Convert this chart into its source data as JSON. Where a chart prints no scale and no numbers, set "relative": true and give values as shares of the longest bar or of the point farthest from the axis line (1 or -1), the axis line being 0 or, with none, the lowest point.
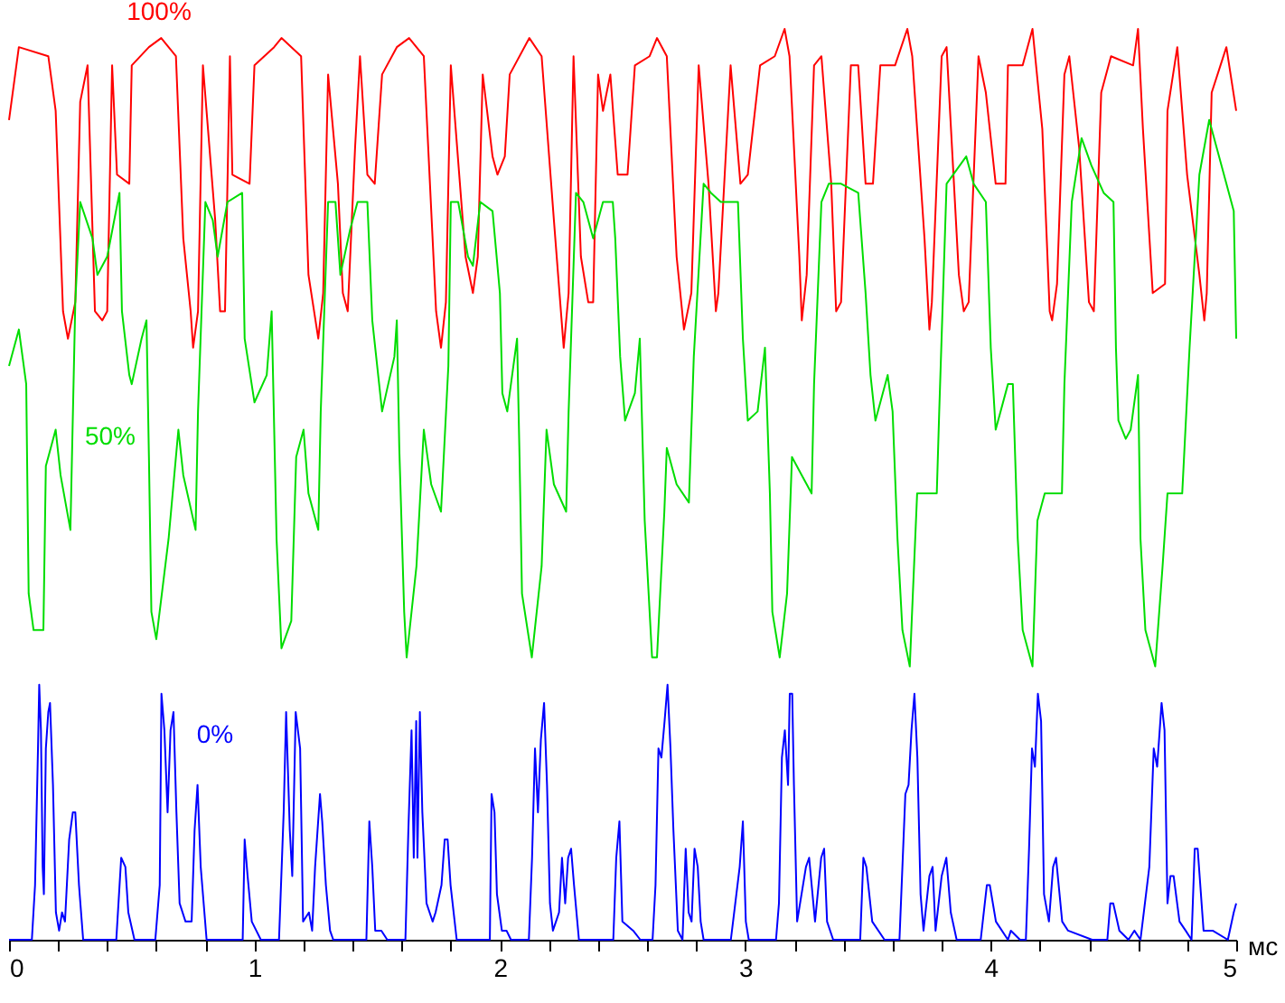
{
  "chart_data": {
    "type": "line",
    "relative": true,
    "xlabel": "мс",
    "xlim": [
      0,
      5
    ],
    "xticks": [
      0,
      {
        "value": 0.2,
        "label": null
      },
      {
        "value": 0.4,
        "label": null
      },
      {
        "value": 0.6,
        "label": null
      },
      {
        "value": 0.8,
        "label": null
      },
      1,
      {
        "value": 1.2,
        "label": null
      },
      {
        "value": 1.4,
        "label": null
      },
      {
        "value": 1.6,
        "label": null
      },
      {
        "value": 1.8,
        "label": null
      },
      2,
      {
        "value": 2.2,
        "label": null
      },
      {
        "value": 2.4,
        "label": null
      },
      {
        "value": 2.6,
        "label": null
      },
      {
        "value": 2.8,
        "label": null
      },
      3,
      {
        "value": 3.2,
        "label": null
      },
      {
        "value": 3.4,
        "label": null
      },
      {
        "value": 3.6,
        "label": null
      },
      {
        "value": 3.8,
        "label": null
      },
      4,
      {
        "value": 4.2,
        "label": null
      },
      {
        "value": 4.4,
        "label": null
      },
      {
        "value": 4.6,
        "label": null
      },
      {
        "value": 4.8,
        "label": null
      },
      5
    ],
    "series": [
      {
        "name": "100%",
        "color": "#ff0000",
        "x": [
          0.0,
          0.04,
          0.16,
          0.19,
          0.22,
          0.24,
          0.27,
          0.29,
          0.32,
          0.35,
          0.38,
          0.4,
          0.42,
          0.44,
          0.49,
          0.5,
          0.57,
          0.62,
          0.68,
          0.71,
          0.74,
          0.75,
          0.77,
          0.79,
          0.84,
          0.86,
          0.88,
          0.9,
          0.91,
          0.98,
          1.0,
          1.08,
          1.11,
          1.19,
          1.22,
          1.26,
          1.28,
          1.3,
          1.34,
          1.36,
          1.38,
          1.41,
          1.43,
          1.46,
          1.49,
          1.52,
          1.58,
          1.63,
          1.69,
          1.74,
          1.76,
          1.78,
          1.8,
          1.86,
          1.89,
          1.91,
          1.93,
          1.97,
          1.99,
          2.02,
          2.04,
          2.12,
          2.17,
          2.22,
          2.26,
          2.28,
          2.3,
          2.33,
          2.36,
          2.38,
          2.4,
          2.42,
          2.45,
          2.48,
          2.52,
          2.55,
          2.61,
          2.64,
          2.68,
          2.72,
          2.75,
          2.78,
          2.81,
          2.85,
          2.88,
          2.89,
          2.94,
          2.98,
          3.01,
          3.06,
          3.12,
          3.16,
          3.18,
          3.22,
          3.23,
          3.25,
          3.28,
          3.31,
          3.35,
          3.37,
          3.39,
          3.43,
          3.46,
          3.49,
          3.52,
          3.55,
          3.61,
          3.66,
          3.68,
          3.73,
          3.75,
          3.76,
          3.8,
          3.82,
          3.87,
          3.89,
          3.91,
          3.95,
          3.98,
          4.02,
          4.06,
          4.07,
          4.13,
          4.17,
          4.21,
          4.24,
          4.25,
          4.27,
          4.3,
          4.32,
          4.36,
          4.4,
          4.42,
          4.45,
          4.49,
          4.58,
          4.6,
          4.62,
          4.66,
          4.71,
          4.72,
          4.76,
          4.8,
          4.85,
          4.87,
          4.88,
          4.9,
          4.96,
          5.0
        ],
        "values": [
          0.9,
          0.98,
          0.97,
          0.91,
          0.69,
          0.66,
          0.7,
          0.92,
          0.96,
          0.69,
          0.68,
          0.69,
          0.96,
          0.84,
          0.83,
          0.96,
          0.98,
          0.99,
          0.97,
          0.77,
          0.69,
          0.65,
          0.69,
          0.96,
          0.79,
          0.69,
          0.69,
          0.97,
          0.84,
          0.83,
          0.96,
          0.98,
          0.99,
          0.97,
          0.73,
          0.66,
          0.71,
          0.95,
          0.83,
          0.71,
          0.69,
          0.87,
          0.97,
          0.84,
          0.83,
          0.95,
          0.98,
          0.99,
          0.97,
          0.69,
          0.65,
          0.7,
          0.96,
          0.75,
          0.71,
          0.75,
          0.95,
          0.86,
          0.84,
          0.86,
          0.95,
          0.99,
          0.97,
          0.79,
          0.65,
          0.71,
          0.97,
          0.75,
          0.7,
          0.7,
          0.95,
          0.91,
          0.95,
          0.84,
          0.84,
          0.96,
          0.97,
          0.99,
          0.97,
          0.75,
          0.67,
          0.71,
          0.96,
          0.83,
          0.69,
          0.71,
          0.96,
          0.83,
          0.84,
          0.96,
          0.97,
          1.0,
          0.97,
          0.75,
          0.68,
          0.73,
          0.96,
          0.97,
          0.83,
          0.69,
          0.7,
          0.96,
          0.96,
          0.83,
          0.83,
          0.96,
          0.96,
          1.0,
          0.97,
          0.77,
          0.67,
          0.7,
          0.97,
          0.98,
          0.73,
          0.69,
          0.7,
          0.97,
          0.93,
          0.83,
          0.83,
          0.96,
          0.96,
          1.0,
          0.89,
          0.69,
          0.68,
          0.72,
          0.95,
          0.97,
          0.87,
          0.7,
          0.69,
          0.93,
          0.97,
          0.96,
          1.0,
          0.89,
          0.71,
          0.72,
          0.91,
          0.98,
          0.84,
          0.73,
          0.68,
          0.71,
          0.93,
          0.98,
          0.91
        ]
      },
      {
        "name": "50%",
        "color": "#00dd00",
        "x": [
          0.0,
          0.04,
          0.07,
          0.08,
          0.1,
          0.14,
          0.15,
          0.19,
          0.21,
          0.25,
          0.27,
          0.29,
          0.34,
          0.36,
          0.4,
          0.45,
          0.46,
          0.49,
          0.5,
          0.54,
          0.56,
          0.57,
          0.58,
          0.6,
          0.65,
          0.69,
          0.71,
          0.76,
          0.77,
          0.8,
          0.83,
          0.85,
          0.89,
          0.95,
          0.96,
          1.0,
          1.05,
          1.07,
          1.09,
          1.11,
          1.15,
          1.17,
          1.2,
          1.22,
          1.26,
          1.27,
          1.3,
          1.33,
          1.35,
          1.39,
          1.42,
          1.46,
          1.48,
          1.52,
          1.57,
          1.58,
          1.59,
          1.61,
          1.62,
          1.66,
          1.69,
          1.72,
          1.76,
          1.79,
          1.8,
          1.83,
          1.87,
          1.89,
          1.92,
          1.97,
          2.0,
          2.01,
          2.03,
          2.07,
          2.08,
          2.09,
          2.13,
          2.17,
          2.19,
          2.22,
          2.27,
          2.28,
          2.31,
          2.34,
          2.38,
          2.42,
          2.46,
          2.47,
          2.49,
          2.51,
          2.55,
          2.57,
          2.59,
          2.62,
          2.64,
          2.67,
          2.68,
          2.72,
          2.77,
          2.79,
          2.83,
          2.86,
          2.9,
          2.97,
          2.99,
          3.01,
          3.05,
          3.08,
          3.1,
          3.11,
          3.14,
          3.17,
          3.19,
          3.23,
          3.27,
          3.28,
          3.31,
          3.34,
          3.39,
          3.46,
          3.49,
          3.51,
          3.53,
          3.58,
          3.6,
          3.62,
          3.64,
          3.67,
          3.7,
          3.73,
          3.78,
          3.79,
          3.82,
          3.9,
          3.93,
          3.98,
          4.0,
          4.02,
          4.07,
          4.09,
          4.11,
          4.13,
          4.17,
          4.19,
          4.22,
          4.29,
          4.3,
          4.33,
          4.37,
          4.41,
          4.46,
          4.5,
          4.51,
          4.52,
          4.55,
          4.57,
          4.6,
          4.61,
          4.63,
          4.67,
          4.7,
          4.72,
          4.78,
          4.81,
          4.85,
          4.89,
          4.92,
          4.96,
          4.99,
          5.0
        ],
        "values": [
          0.63,
          0.67,
          0.61,
          0.38,
          0.34,
          0.34,
          0.52,
          0.56,
          0.51,
          0.45,
          0.7,
          0.81,
          0.77,
          0.73,
          0.75,
          0.82,
          0.69,
          0.62,
          0.61,
          0.66,
          0.68,
          0.53,
          0.36,
          0.33,
          0.44,
          0.56,
          0.51,
          0.45,
          0.58,
          0.81,
          0.79,
          0.75,
          0.81,
          0.82,
          0.66,
          0.59,
          0.62,
          0.69,
          0.44,
          0.32,
          0.35,
          0.53,
          0.56,
          0.49,
          0.45,
          0.58,
          0.81,
          0.81,
          0.73,
          0.78,
          0.81,
          0.81,
          0.68,
          0.58,
          0.64,
          0.68,
          0.54,
          0.36,
          0.31,
          0.41,
          0.56,
          0.5,
          0.47,
          0.63,
          0.81,
          0.81,
          0.75,
          0.74,
          0.81,
          0.8,
          0.71,
          0.6,
          0.58,
          0.66,
          0.53,
          0.38,
          0.31,
          0.41,
          0.56,
          0.5,
          0.47,
          0.58,
          0.82,
          0.81,
          0.77,
          0.81,
          0.81,
          0.77,
          0.64,
          0.57,
          0.6,
          0.66,
          0.46,
          0.31,
          0.31,
          0.47,
          0.54,
          0.5,
          0.48,
          0.64,
          0.83,
          0.82,
          0.81,
          0.81,
          0.66,
          0.57,
          0.58,
          0.65,
          0.49,
          0.36,
          0.31,
          0.38,
          0.53,
          0.51,
          0.49,
          0.61,
          0.81,
          0.83,
          0.83,
          0.82,
          0.71,
          0.62,
          0.57,
          0.62,
          0.58,
          0.44,
          0.34,
          0.3,
          0.49,
          0.49,
          0.49,
          0.58,
          0.83,
          0.86,
          0.83,
          0.81,
          0.65,
          0.56,
          0.61,
          0.61,
          0.44,
          0.34,
          0.3,
          0.46,
          0.49,
          0.49,
          0.61,
          0.81,
          0.88,
          0.85,
          0.82,
          0.81,
          0.65,
          0.57,
          0.55,
          0.56,
          0.62,
          0.44,
          0.34,
          0.3,
          0.41,
          0.49,
          0.49,
          0.65,
          0.84,
          0.9,
          0.87,
          0.83,
          0.8,
          0.66
        ]
      },
      {
        "name": "0%",
        "color": "#0000ff",
        "x": [
          0.0,
          0.093,
          0.106,
          0.118,
          0.123,
          0.13,
          0.137,
          0.142,
          0.15,
          0.16,
          0.167,
          0.179,
          0.191,
          0.204,
          0.216,
          0.228,
          0.245,
          0.26,
          0.27,
          0.285,
          0.302,
          0.437,
          0.457,
          0.474,
          0.486,
          0.511,
          0.596,
          0.614,
          0.621,
          0.633,
          0.646,
          0.658,
          0.67,
          0.682,
          0.695,
          0.719,
          0.744,
          0.756,
          0.768,
          0.781,
          0.805,
          0.952,
          0.96,
          0.972,
          0.989,
          1.026,
          1.1,
          1.119,
          1.129,
          1.144,
          1.154,
          1.168,
          1.186,
          1.198,
          1.222,
          1.235,
          1.247,
          1.267,
          1.276,
          1.291,
          1.308,
          1.321,
          1.456,
          1.468,
          1.48,
          1.492,
          1.517,
          1.541,
          1.615,
          1.627,
          1.64,
          1.649,
          1.659,
          1.664,
          1.674,
          1.684,
          1.701,
          1.726,
          1.738,
          1.762,
          1.775,
          1.787,
          1.799,
          1.824,
          1.959,
          1.966,
          1.978,
          1.988,
          2.008,
          2.027,
          2.045,
          2.118,
          2.131,
          2.143,
          2.155,
          2.167,
          2.18,
          2.192,
          2.204,
          2.216,
          2.241,
          2.253,
          2.266,
          2.278,
          2.29,
          2.302,
          2.322,
          2.462,
          2.474,
          2.487,
          2.499,
          2.543,
          2.572,
          2.622,
          2.634,
          2.646,
          2.658,
          2.671,
          2.683,
          2.695,
          2.707,
          2.725,
          2.744,
          2.757,
          2.769,
          2.781,
          2.793,
          2.806,
          2.818,
          2.83,
          2.941,
          2.977,
          2.99,
          3.002,
          3.014,
          3.063,
          3.125,
          3.137,
          3.149,
          3.161,
          3.174,
          3.181,
          3.191,
          3.198,
          3.211,
          3.247,
          3.26,
          3.284,
          3.309,
          3.321,
          3.333,
          3.358,
          3.468,
          3.481,
          3.493,
          3.517,
          3.567,
          3.628,
          3.652,
          3.665,
          3.677,
          3.689,
          3.701,
          3.714,
          3.726,
          3.75,
          3.763,
          3.775,
          3.8,
          3.819,
          3.837,
          3.861,
          3.959,
          3.984,
          3.996,
          4.021,
          4.07,
          4.082,
          4.119,
          4.143,
          4.156,
          4.168,
          4.18,
          4.192,
          4.205,
          4.217,
          4.237,
          4.254,
          4.266,
          4.291,
          4.315,
          4.413,
          4.475,
          4.487,
          4.499,
          4.524,
          4.561,
          4.585,
          4.61,
          4.646,
          4.664,
          4.678,
          4.696,
          4.708,
          4.72,
          4.732,
          4.745,
          4.769,
          4.794,
          4.818,
          4.831,
          4.843,
          4.867,
          4.904,
          4.966,
          4.99,
          5.0
        ],
        "values": [
          0,
          0,
          0.06,
          0.21,
          0.28,
          0.23,
          0.08,
          0.05,
          0.21,
          0.25,
          0.26,
          0.17,
          0.03,
          0.01,
          0.03,
          0.02,
          0.11,
          0.14,
          0.14,
          0.06,
          0,
          0,
          0.09,
          0.08,
          0.03,
          0,
          0,
          0.06,
          0.27,
          0.23,
          0.14,
          0.23,
          0.25,
          0.14,
          0.04,
          0.02,
          0.02,
          0.12,
          0.17,
          0.08,
          0,
          0,
          0.11,
          0.07,
          0.02,
          0,
          0,
          0.14,
          0.25,
          0.12,
          0.07,
          0.25,
          0.21,
          0.02,
          0.03,
          0.01,
          0.08,
          0.16,
          0.13,
          0.06,
          0.01,
          0,
          0,
          0.13,
          0.08,
          0.01,
          0.01,
          0,
          0,
          0.12,
          0.23,
          0.09,
          0.24,
          0.09,
          0.25,
          0.14,
          0.04,
          0.02,
          0.03,
          0.06,
          0.11,
          0.11,
          0.06,
          0,
          0,
          0.16,
          0.14,
          0.05,
          0.01,
          0.01,
          0,
          0,
          0.09,
          0.21,
          0.14,
          0.22,
          0.26,
          0.17,
          0.04,
          0.01,
          0.03,
          0.09,
          0.04,
          0.09,
          0.1,
          0.06,
          0,
          0,
          0.09,
          0.13,
          0.02,
          0.01,
          0,
          0,
          0.06,
          0.21,
          0.2,
          0.24,
          0.28,
          0.21,
          0.12,
          0.01,
          0,
          0.1,
          0.03,
          0.02,
          0.1,
          0.08,
          0.02,
          0,
          0,
          0.08,
          0.13,
          0.02,
          0,
          0,
          0,
          0.04,
          0.2,
          0.23,
          0.17,
          0.27,
          0.27,
          0.17,
          0.02,
          0.08,
          0.09,
          0.02,
          0.09,
          0.1,
          0.02,
          0,
          0,
          0.09,
          0.08,
          0.02,
          0,
          0,
          0.16,
          0.17,
          0.23,
          0.27,
          0.2,
          0.05,
          0.01,
          0.07,
          0.08,
          0.01,
          0.07,
          0.09,
          0.03,
          0,
          0,
          0.06,
          0.06,
          0.02,
          0,
          0.01,
          0,
          0,
          0.1,
          0.21,
          0.19,
          0.27,
          0.24,
          0.05,
          0.02,
          0.08,
          0.09,
          0.02,
          0.01,
          0,
          0,
          0.04,
          0.04,
          0.01,
          0,
          0.01,
          0,
          0.08,
          0.21,
          0.19,
          0.26,
          0.23,
          0.04,
          0.07,
          0.07,
          0.02,
          0.01,
          0,
          0.1,
          0.1,
          0.01,
          0.01,
          0,
          0.03,
          0.04
        ]
      }
    ]
  }
}
